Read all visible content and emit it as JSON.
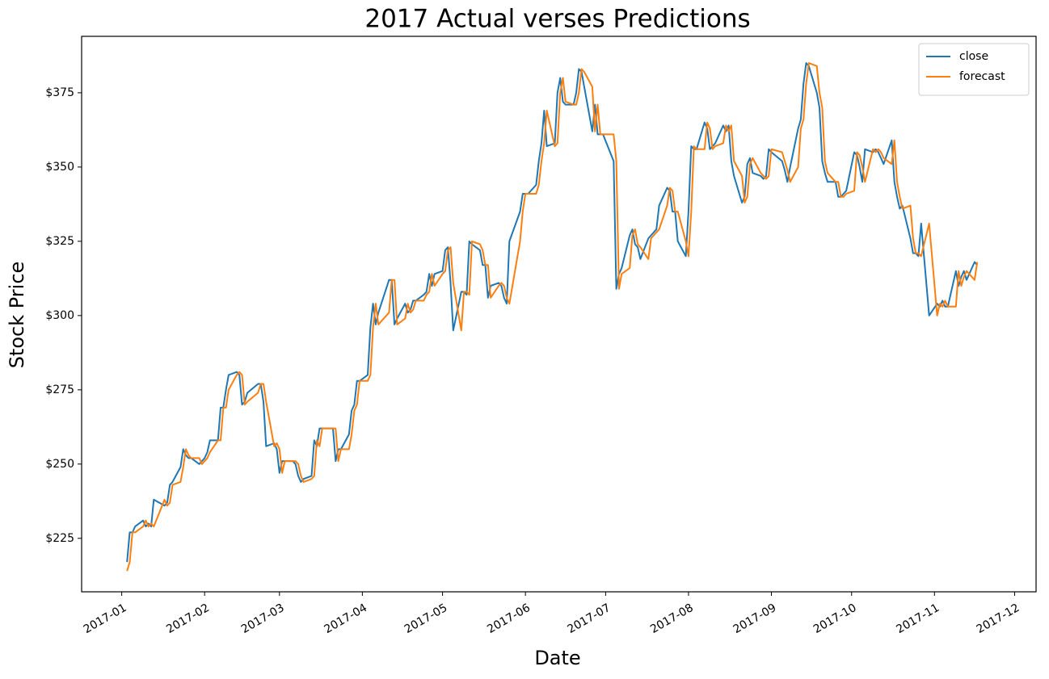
{
  "chart_data": {
    "type": "line",
    "title": "2017 Actual verses Predictions",
    "x_label": "Date",
    "y_label": "Stock Price",
    "legend": "upper right",
    "grid": false,
    "xlim": [
      -14,
      343
    ],
    "xticks": [
      {
        "value": 1,
        "label": "2017-01"
      },
      {
        "value": 32,
        "label": "2017-02"
      },
      {
        "value": 60,
        "label": "2017-03"
      },
      {
        "value": 91,
        "label": "2017-04"
      },
      {
        "value": 121,
        "label": "2017-05"
      },
      {
        "value": 152,
        "label": "2017-06"
      },
      {
        "value": 182,
        "label": "2017-07"
      },
      {
        "value": 213,
        "label": "2017-08"
      },
      {
        "value": 244,
        "label": "2017-09"
      },
      {
        "value": 274,
        "label": "2017-10"
      },
      {
        "value": 305,
        "label": "2017-11"
      },
      {
        "value": 335,
        "label": "2017-12"
      }
    ],
    "ylim": [
      207,
      394
    ],
    "yticks": [
      {
        "value": 225,
        "label": "$225"
      },
      {
        "value": 250,
        "label": "$250"
      },
      {
        "value": 275,
        "label": "$275"
      },
      {
        "value": 300,
        "label": "$300"
      },
      {
        "value": 325,
        "label": "$325"
      },
      {
        "value": 350,
        "label": "$350"
      },
      {
        "value": 375,
        "label": "$375"
      }
    ],
    "x": [
      3,
      4,
      5,
      6,
      9,
      10,
      11,
      12,
      13,
      17,
      18,
      19,
      20,
      23,
      24,
      25,
      26,
      27,
      30,
      31,
      32,
      33,
      34,
      37,
      38,
      39,
      40,
      41,
      44,
      45,
      46,
      47,
      48,
      52,
      53,
      54,
      55,
      58,
      59,
      60,
      61,
      62,
      65,
      66,
      67,
      68,
      69,
      72,
      73,
      74,
      75,
      76,
      79,
      80,
      81,
      82,
      83,
      86,
      87,
      88,
      89,
      90,
      93,
      94,
      95,
      96,
      97,
      101,
      102,
      103,
      104,
      107,
      108,
      109,
      110,
      111,
      114,
      115,
      116,
      117,
      118,
      121,
      122,
      123,
      124,
      125,
      128,
      129,
      130,
      131,
      132,
      135,
      136,
      137,
      138,
      139,
      142,
      143,
      144,
      145,
      146,
      150,
      151,
      152,
      153,
      156,
      157,
      158,
      159,
      160,
      163,
      164,
      165,
      166,
      167,
      170,
      171,
      172,
      173,
      174,
      177,
      178,
      179,
      180,
      181,
      185,
      186,
      187,
      188,
      191,
      192,
      193,
      194,
      195,
      198,
      199,
      200,
      201,
      202,
      205,
      206,
      207,
      208,
      209,
      212,
      213,
      214,
      215,
      216,
      219,
      220,
      221,
      222,
      223,
      226,
      227,
      228,
      229,
      230,
      233,
      234,
      235,
      236,
      237,
      240,
      241,
      242,
      243,
      244,
      248,
      249,
      250,
      251,
      254,
      255,
      256,
      257,
      258,
      261,
      262,
      263,
      264,
      265,
      268,
      269,
      270,
      271,
      272,
      275,
      276,
      277,
      278,
      279,
      282,
      283,
      284,
      285,
      286,
      289,
      290,
      291,
      292,
      293,
      296,
      297,
      298,
      299,
      300,
      303,
      306,
      307,
      308,
      309,
      310,
      313,
      314,
      315,
      316,
      317,
      320,
      321
    ],
    "series": [
      {
        "name": "close",
        "color": "#1f77b4",
        "values": [
          217,
          227,
          227,
          229,
          231,
          229,
          230,
          229,
          238,
          236,
          237,
          243,
          244,
          249,
          255,
          253,
          252,
          252,
          250,
          251,
          252,
          254,
          258,
          258,
          269,
          269,
          275,
          280,
          281,
          280,
          270,
          271,
          274,
          277,
          277,
          271,
          256,
          257,
          255,
          247,
          251,
          251,
          251,
          250,
          246,
          244,
          245,
          246,
          258,
          256,
          262,
          262,
          262,
          262,
          251,
          255,
          255,
          260,
          268,
          270,
          278,
          278,
          280,
          296,
          304,
          297,
          301,
          312,
          312,
          297,
          299,
          304,
          301,
          302,
          305,
          305,
          307,
          308,
          314,
          310,
          314,
          315,
          322,
          323,
          311,
          295,
          308,
          308,
          307,
          325,
          324,
          322,
          317,
          317,
          306,
          310,
          311,
          310,
          306,
          304,
          325,
          335,
          341,
          341,
          341,
          344,
          352,
          358,
          369,
          357,
          358,
          375,
          380,
          372,
          371,
          371,
          375,
          383,
          382,
          377,
          362,
          371,
          361,
          361,
          361,
          352,
          309,
          314,
          316,
          327,
          329,
          324,
          323,
          319,
          326,
          327,
          328,
          329,
          337,
          343,
          342,
          335,
          335,
          325,
          320,
          335,
          357,
          356,
          356,
          365,
          363,
          356,
          357,
          358,
          364,
          362,
          364,
          352,
          347,
          338,
          340,
          351,
          353,
          348,
          347,
          346,
          347,
          356,
          355,
          352,
          349,
          345,
          350,
          363,
          366,
          378,
          385,
          384,
          375,
          370,
          352,
          348,
          345,
          345,
          340,
          340,
          341,
          342,
          355,
          354,
          350,
          345,
          356,
          355,
          356,
          355,
          353,
          351,
          359,
          345,
          340,
          336,
          337,
          326,
          321,
          321,
          320,
          331,
          300,
          304,
          303,
          305,
          303,
          303,
          315,
          310,
          313,
          315,
          312,
          318,
          317
        ]
      },
      {
        "name": "forecast",
        "color": "#ff7f0e",
        "values": [
          214,
          217,
          227,
          227,
          229,
          231,
          229,
          230,
          229,
          238,
          236,
          237,
          243,
          244,
          249,
          255,
          253,
          252,
          252,
          250,
          251,
          252,
          254,
          258,
          258,
          269,
          269,
          275,
          280,
          281,
          280,
          270,
          271,
          274,
          277,
          277,
          271,
          256,
          257,
          255,
          247,
          251,
          251,
          251,
          250,
          246,
          244,
          245,
          246,
          258,
          256,
          262,
          262,
          262,
          262,
          251,
          255,
          255,
          260,
          268,
          270,
          278,
          278,
          280,
          296,
          304,
          297,
          301,
          312,
          312,
          297,
          299,
          304,
          301,
          302,
          305,
          305,
          307,
          308,
          314,
          310,
          314,
          315,
          322,
          323,
          311,
          295,
          308,
          308,
          307,
          325,
          324,
          322,
          317,
          317,
          306,
          310,
          311,
          310,
          306,
          304,
          325,
          335,
          341,
          341,
          341,
          344,
          352,
          358,
          369,
          357,
          358,
          375,
          380,
          372,
          371,
          371,
          375,
          383,
          382,
          377,
          362,
          371,
          361,
          361,
          361,
          352,
          309,
          314,
          316,
          327,
          329,
          324,
          323,
          319,
          326,
          327,
          328,
          329,
          337,
          343,
          342,
          335,
          335,
          325,
          320,
          335,
          357,
          356,
          356,
          365,
          363,
          356,
          357,
          358,
          364,
          362,
          364,
          352,
          347,
          338,
          340,
          351,
          353,
          348,
          347,
          346,
          347,
          356,
          355,
          352,
          349,
          345,
          350,
          363,
          366,
          378,
          385,
          384,
          375,
          370,
          352,
          348,
          345,
          345,
          340,
          340,
          341,
          342,
          355,
          354,
          350,
          345,
          356,
          355,
          356,
          355,
          353,
          351,
          359,
          345,
          340,
          336,
          337,
          326,
          321,
          321,
          320,
          331,
          300,
          304,
          303,
          305,
          303,
          303,
          315,
          310,
          313,
          315,
          312,
          318
        ]
      }
    ]
  }
}
